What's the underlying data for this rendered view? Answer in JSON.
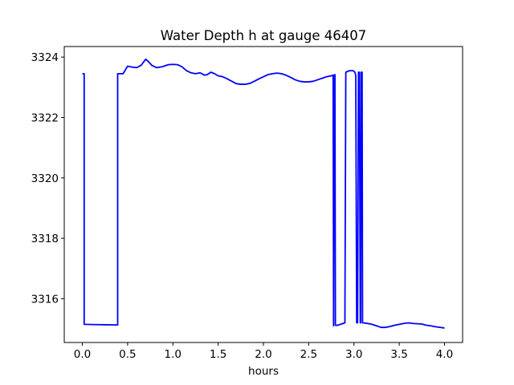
{
  "chart_data": {
    "type": "line",
    "title": "Water Depth h at gauge 46407",
    "xlabel": "hours",
    "ylabel": "",
    "xlim": [
      -0.2,
      4.2
    ],
    "ylim": [
      3314.55,
      3324.35
    ],
    "xticks": [
      0.0,
      0.5,
      1.0,
      1.5,
      2.0,
      2.5,
      3.0,
      3.5,
      4.0
    ],
    "xtick_labels": [
      "0.0",
      "0.5",
      "1.0",
      "1.5",
      "2.0",
      "2.5",
      "3.0",
      "3.5",
      "4.0"
    ],
    "yticks": [
      3316,
      3318,
      3320,
      3322,
      3324
    ],
    "ytick_labels": [
      "3316",
      "3318",
      "3320",
      "3322",
      "3324"
    ],
    "grid": false,
    "series": [
      {
        "color": "#0000ff",
        "x": [
          0.0,
          0.02,
          0.02,
          0.38,
          0.39,
          0.39,
          0.45,
          0.5,
          0.55,
          0.6,
          0.65,
          0.7,
          0.73,
          0.77,
          0.82,
          0.88,
          0.95,
          1.0,
          1.05,
          1.1,
          1.15,
          1.2,
          1.25,
          1.3,
          1.35,
          1.38,
          1.42,
          1.46,
          1.5,
          1.55,
          1.6,
          1.65,
          1.7,
          1.75,
          1.8,
          1.85,
          1.9,
          1.95,
          2.0,
          2.05,
          2.1,
          2.15,
          2.2,
          2.25,
          2.3,
          2.35,
          2.4,
          2.45,
          2.5,
          2.55,
          2.6,
          2.65,
          2.7,
          2.75,
          2.77,
          2.775,
          2.78,
          2.79,
          2.795,
          2.8,
          2.82,
          2.9,
          2.91,
          2.95,
          2.99,
          3.01,
          3.02,
          3.03,
          3.04,
          3.05,
          3.06,
          3.07,
          3.075,
          3.08,
          3.09,
          3.095,
          3.1,
          3.15,
          3.2,
          3.25,
          3.3,
          3.35,
          3.4,
          3.45,
          3.5,
          3.55,
          3.6,
          3.65,
          3.7,
          3.75,
          3.8,
          3.85,
          3.9,
          3.95,
          4.0
        ],
        "y": [
          3323.45,
          3323.45,
          3315.15,
          3315.13,
          3315.13,
          3323.45,
          3323.45,
          3323.7,
          3323.67,
          3323.65,
          3323.73,
          3323.93,
          3323.85,
          3323.72,
          3323.65,
          3323.68,
          3323.75,
          3323.76,
          3323.75,
          3323.68,
          3323.55,
          3323.48,
          3323.45,
          3323.48,
          3323.4,
          3323.42,
          3323.5,
          3323.45,
          3323.38,
          3323.35,
          3323.28,
          3323.2,
          3323.12,
          3323.1,
          3323.1,
          3323.13,
          3323.2,
          3323.28,
          3323.35,
          3323.42,
          3323.45,
          3323.47,
          3323.45,
          3323.4,
          3323.33,
          3323.25,
          3323.2,
          3323.18,
          3323.18,
          3323.2,
          3323.25,
          3323.3,
          3323.35,
          3323.38,
          3323.4,
          3315.1,
          3323.4,
          3323.42,
          3315.12,
          3315.12,
          3315.12,
          3315.2,
          3323.5,
          3323.55,
          3323.55,
          3323.5,
          3323.4,
          3315.2,
          3315.2,
          3323.5,
          3323.5,
          3315.2,
          3315.2,
          3323.5,
          3323.5,
          3315.2,
          3315.2,
          3315.18,
          3315.15,
          3315.1,
          3315.05,
          3315.05,
          3315.08,
          3315.12,
          3315.15,
          3315.18,
          3315.2,
          3315.18,
          3315.17,
          3315.16,
          3315.12,
          3315.1,
          3315.07,
          3315.05,
          3315.03
        ]
      }
    ]
  }
}
